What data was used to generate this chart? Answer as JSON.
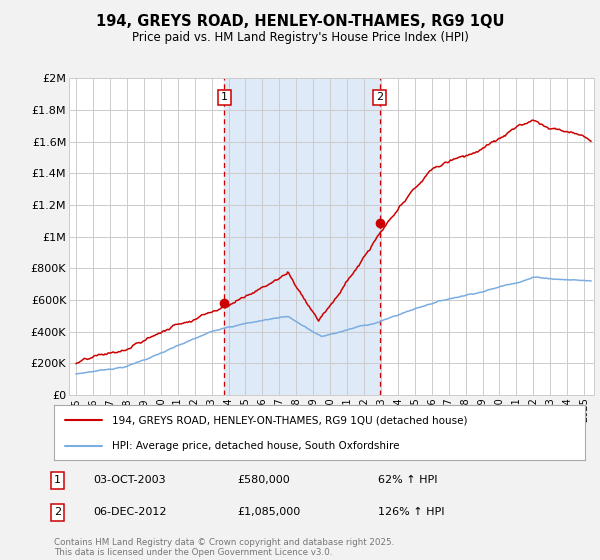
{
  "title": "194, GREYS ROAD, HENLEY-ON-THAMES, RG9 1QU",
  "subtitle": "Price paid vs. HM Land Registry's House Price Index (HPI)",
  "ylim": [
    0,
    2000000
  ],
  "yticks": [
    0,
    200000,
    400000,
    600000,
    800000,
    1000000,
    1200000,
    1400000,
    1600000,
    1800000,
    2000000
  ],
  "ytick_labels": [
    "£0",
    "£200K",
    "£400K",
    "£600K",
    "£800K",
    "£1M",
    "£1.2M",
    "£1.4M",
    "£1.6M",
    "£1.8M",
    "£2M"
  ],
  "xlim_start": 1994.58,
  "xlim_end": 2025.58,
  "bg_color": "#f2f2f2",
  "plot_bg_color": "#ffffff",
  "grid_color": "#cccccc",
  "red_color": "#cc0000",
  "blue_color": "#7aade0",
  "sale1_x": 2003.75,
  "sale1_y": 580000,
  "sale2_x": 2012.92,
  "sale2_y": 1085000,
  "shade_color": "#deeaf7",
  "legend1": "194, GREYS ROAD, HENLEY-ON-THAMES, RG9 1QU (detached house)",
  "legend2": "HPI: Average price, detached house, South Oxfordshire",
  "annotation1_num": "1",
  "annotation1_date": "03-OCT-2003",
  "annotation1_price": "£580,000",
  "annotation1_hpi": "62% ↑ HPI",
  "annotation2_num": "2",
  "annotation2_date": "06-DEC-2012",
  "annotation2_price": "£1,085,000",
  "annotation2_hpi": "126% ↑ HPI",
  "footer": "Contains HM Land Registry data © Crown copyright and database right 2025.\nThis data is licensed under the Open Government Licence v3.0."
}
